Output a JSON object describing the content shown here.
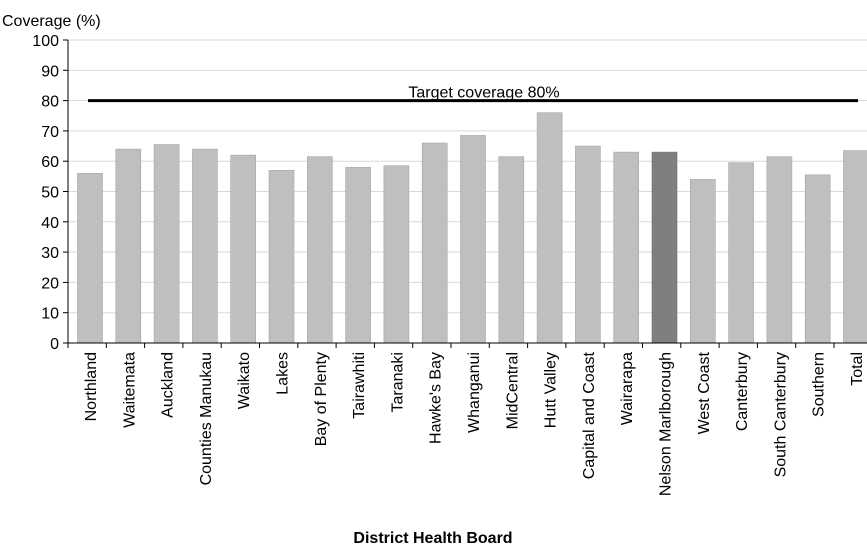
{
  "chart_data": {
    "type": "bar",
    "ylabel": "Coverage (%)",
    "xlabel": "District Health Board",
    "ylim": [
      0,
      100
    ],
    "yticks": [
      0,
      10,
      20,
      30,
      40,
      50,
      60,
      70,
      80,
      90,
      100
    ],
    "grid": true,
    "categories": [
      "Northland",
      "Waitemata",
      "Auckland",
      "Counties Manukau",
      "Waikato",
      "Lakes",
      "Bay of Plenty",
      "Tairawhiti",
      "Taranaki",
      "Hawke's Bay",
      "Whanganui",
      "MidCentral",
      "Hutt Valley",
      "Capital and Coast",
      "Wairarapa",
      "Nelson Marlborough",
      "West Coast",
      "Canterbury",
      "South Canterbury",
      "Southern",
      "Total"
    ],
    "values": [
      56,
      64,
      65.5,
      64,
      62,
      57,
      61.5,
      58,
      58.5,
      66,
      68.5,
      61.5,
      76,
      65,
      63,
      63,
      54,
      59.5,
      61.5,
      55.5,
      63.5
    ],
    "highlight_category": "Nelson Marlborough",
    "colors": {
      "bar": "#bfbfbf",
      "highlight": "#7f7f7f",
      "target_line": "#000000",
      "grid": "#d9d9d9"
    },
    "target": {
      "value": 80,
      "label": "Target coverage 80%"
    }
  }
}
